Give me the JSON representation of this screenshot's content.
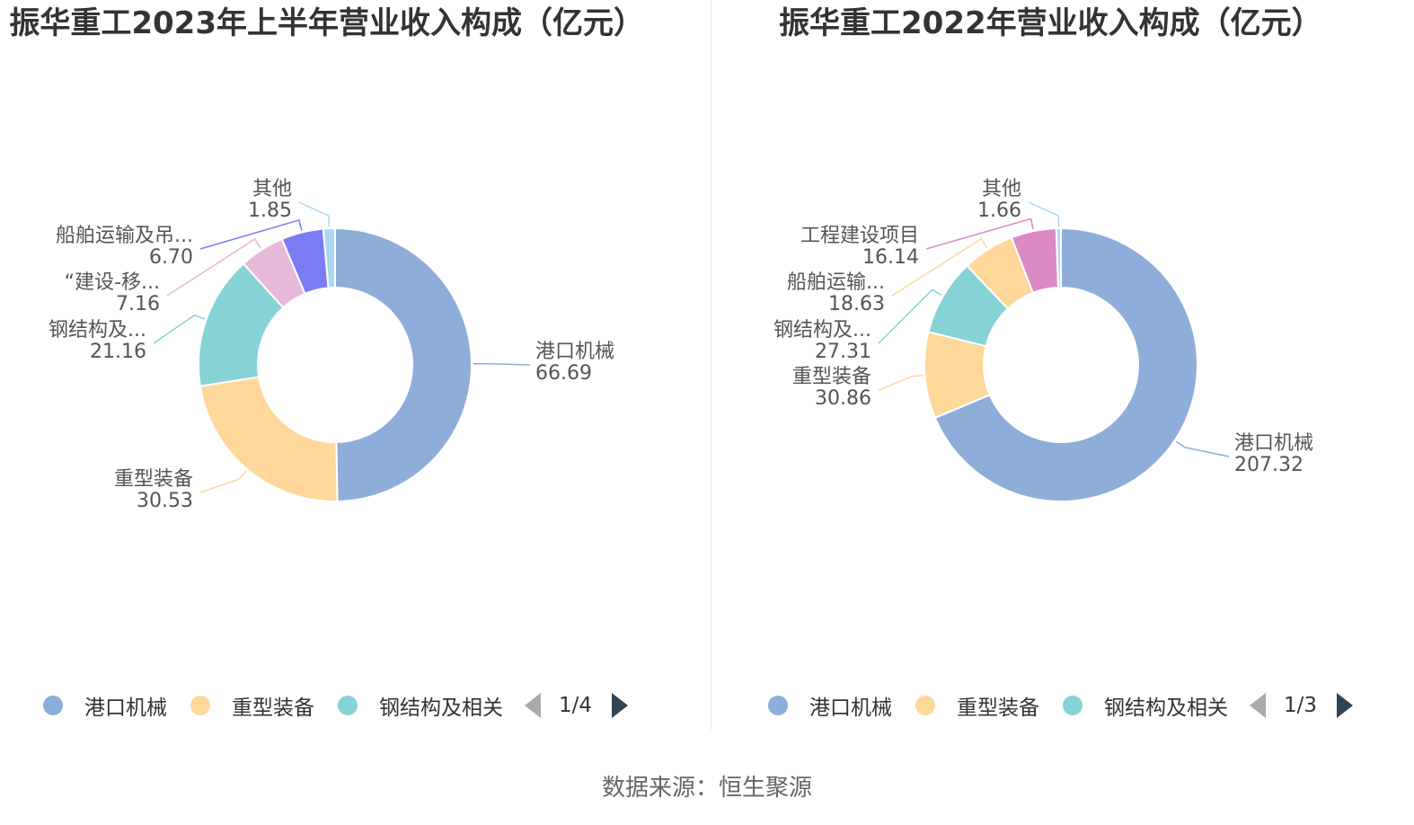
{
  "chart_data": [
    {
      "type": "pie",
      "title": "振华重工2023年上半年营业收入构成（亿元）",
      "slices": [
        {
          "label": "港口机械",
          "value": 66.69,
          "color": "#8eadd9"
        },
        {
          "label": "重型装备",
          "value": 30.53,
          "color": "#fed89a"
        },
        {
          "label": "钢结构及相关",
          "display": "钢结构及...",
          "value": 21.16,
          "color": "#86d3d6"
        },
        {
          "label": "“建设-移...",
          "display": "“建设-移...",
          "value": 7.16,
          "color": "#e8b8d8"
        },
        {
          "label": "船舶运输及吊...",
          "display": "船舶运输及吊...",
          "value": 6.7,
          "color": "#7b7cf4"
        },
        {
          "label": "其他",
          "value": 1.85,
          "color": "#a9d8f5"
        }
      ],
      "legend": {
        "items": [
          "港口机械",
          "重型装备",
          "钢结构及相关"
        ],
        "page_text": "1/4"
      }
    },
    {
      "type": "pie",
      "title": "振华重工2022年营业收入构成（亿元）",
      "slices": [
        {
          "label": "港口机械",
          "value": 207.32,
          "color": "#8eadd9"
        },
        {
          "label": "重型装备",
          "value": 30.86,
          "color": "#fed89a"
        },
        {
          "label": "钢结构及相关",
          "display": "钢结构及...",
          "value": 27.31,
          "color": "#86d3d6"
        },
        {
          "label": "船舶运输...",
          "display": "船舶运输...",
          "value": 18.63,
          "color": "#fed89a"
        },
        {
          "label": "工程建设项目",
          "value": 16.14,
          "color": "#dc8ac4"
        },
        {
          "label": "其他",
          "value": 1.66,
          "color": "#a9d8f5"
        }
      ],
      "legend": {
        "items": [
          "港口机械",
          "重型装备",
          "钢结构及相关"
        ],
        "page_text": "1/3"
      }
    }
  ],
  "source": "数据来源：恒生聚源"
}
